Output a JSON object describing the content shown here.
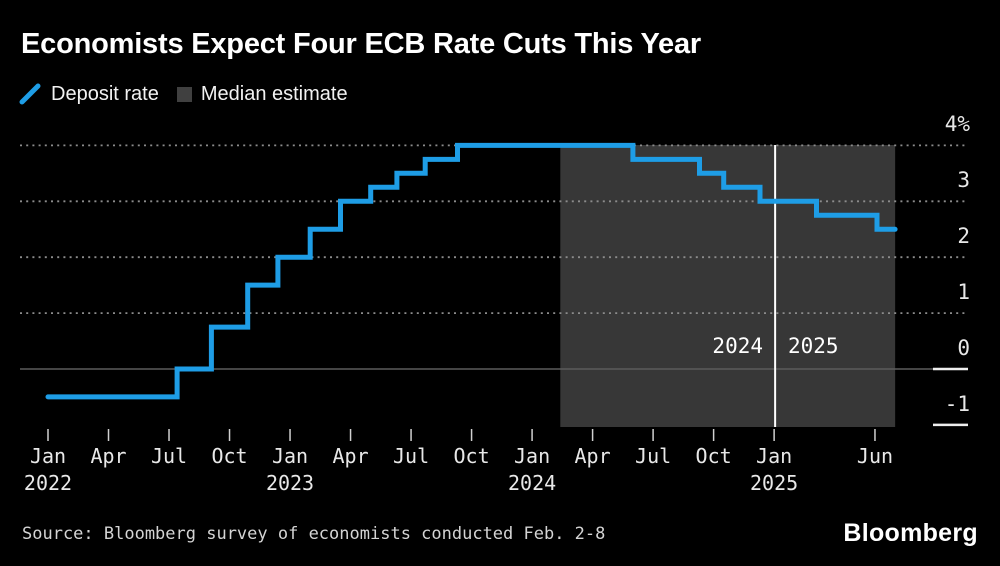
{
  "header": {
    "title": "Economists Expect Four ECB Rate Cuts This Year"
  },
  "legend": {
    "items": [
      {
        "label": "Deposit rate",
        "swatch": "line",
        "color": "#1e9de6"
      },
      {
        "label": "Median estimate",
        "swatch": "square",
        "color": "#404040"
      }
    ]
  },
  "annotations": {
    "year_left": "2024",
    "year_right": "2025"
  },
  "footer": {
    "source": "Source: Bloomberg survey of economists conducted Feb. 2-8",
    "brand": "Bloomberg"
  },
  "colors": {
    "background": "#000000",
    "line": "#1e9de6",
    "estimate_shade": "#373737",
    "gridline": "#8c8c8c",
    "zero_line": "#5c5c5c",
    "divider": "#ffffff",
    "tick": "#d0d0d0",
    "axis_dash": "#eeeeee",
    "axis_text": "#e8e8e8"
  },
  "chart_data": {
    "type": "line",
    "subtype": "step-after",
    "title": "Economists Expect Four ECB Rate Cuts This Year",
    "unit": "%",
    "ylim": [
      -1.25,
      4.35
    ],
    "grid": "dotted-horizontal",
    "legend_position": "top-left",
    "series": [
      {
        "name": "Deposit rate",
        "points": [
          {
            "date": "Jan 2022",
            "m": 0,
            "value": -0.5
          },
          {
            "date": "Jul 2022",
            "m": 6.4,
            "value": 0
          },
          {
            "date": "Sep 2022",
            "m": 8.1,
            "value": 0.75
          },
          {
            "date": "Nov 2022",
            "m": 9.9,
            "value": 1.5
          },
          {
            "date": "Dec 2022",
            "m": 11.4,
            "value": 2
          },
          {
            "date": "Feb 2023",
            "m": 13.0,
            "value": 2.5
          },
          {
            "date": "Mar 2023",
            "m": 14.5,
            "value": 3
          },
          {
            "date": "May 2023",
            "m": 16.0,
            "value": 3.25
          },
          {
            "date": "Jun 2023",
            "m": 17.3,
            "value": 3.5
          },
          {
            "date": "Aug 2023",
            "m": 18.7,
            "value": 3.75
          },
          {
            "date": "Sep 2023",
            "m": 20.3,
            "value": 4
          },
          {
            "date": "Jun 2024",
            "m": 29.0,
            "value": 3.75
          },
          {
            "date": "Sep 2024",
            "m": 32.3,
            "value": 3.5
          },
          {
            "date": "Oct 2024",
            "m": 33.5,
            "value": 3.25
          },
          {
            "date": "Dec 2024",
            "m": 35.3,
            "value": 3
          },
          {
            "date": "Mar 2025",
            "m": 38.1,
            "value": 2.75
          },
          {
            "date": "Jun 2025",
            "m": 41.1,
            "value": 2.5
          }
        ],
        "end": {
          "date": "Jul 2025",
          "m": 42.0
        }
      }
    ],
    "estimate_region": {
      "label": "Median estimate",
      "from_date": "Feb 2024",
      "from_m": 25.4,
      "to_date": "Jul 2025",
      "to_m": 42.0
    },
    "divider": {
      "date": "Jan 2025",
      "m": 36.05
    },
    "y_axis": {
      "ticks": [
        {
          "label": "4%",
          "value": 4
        },
        {
          "label": "3",
          "value": 3
        },
        {
          "label": "2",
          "value": 2
        },
        {
          "label": "1",
          "value": 1
        },
        {
          "label": "0",
          "value": 0
        },
        {
          "label": "-1",
          "value": -1
        }
      ],
      "gridline_values": [
        4,
        3,
        2,
        1
      ],
      "zero_line": true
    },
    "x_axis": {
      "unit": "months since Jan 2022",
      "ticks": [
        {
          "label": "Jan",
          "year": "2022",
          "m": 0
        },
        {
          "label": "Apr",
          "m": 3
        },
        {
          "label": "Jul",
          "m": 6
        },
        {
          "label": "Oct",
          "m": 9
        },
        {
          "label": "Jan",
          "year": "2023",
          "m": 12
        },
        {
          "label": "Apr",
          "m": 15
        },
        {
          "label": "Jul",
          "m": 18
        },
        {
          "label": "Oct",
          "m": 21
        },
        {
          "label": "Jan",
          "year": "2024",
          "m": 24
        },
        {
          "label": "Apr",
          "m": 27
        },
        {
          "label": "Jul",
          "m": 30
        },
        {
          "label": "Oct",
          "m": 33
        },
        {
          "label": "Jan",
          "year": "2025",
          "m": 36
        },
        {
          "label": "Jun",
          "m": 41
        }
      ]
    }
  }
}
